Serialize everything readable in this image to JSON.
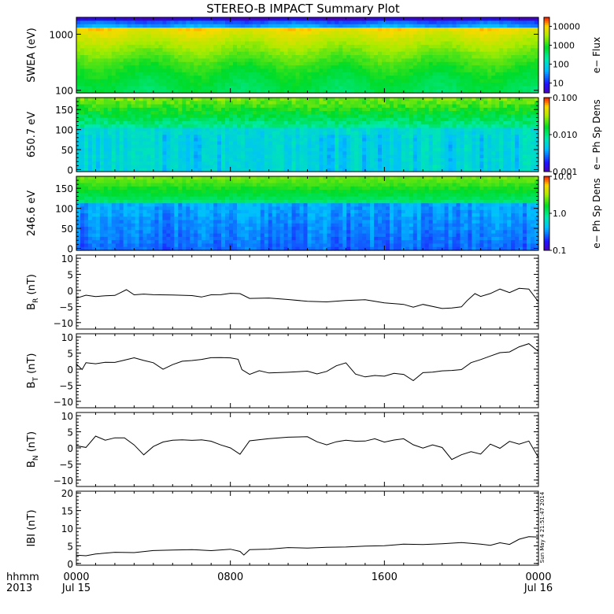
{
  "title": "STEREO-B IMPACT Summary Plot",
  "timestamp": "Sun May  4 21:51:47 2014",
  "time_axis": {
    "corner_label": "hhmm",
    "corner_year": "2013",
    "ticks": [
      {
        "hour": 0,
        "label": "0000",
        "date": "Jul 15"
      },
      {
        "hour": 8,
        "label": "0800",
        "date": ""
      },
      {
        "hour": 16,
        "label": "1600",
        "date": ""
      },
      {
        "hour": 24,
        "label": "0000",
        "date": "Jul 16"
      }
    ],
    "xlim": [
      0,
      24
    ]
  },
  "chart_data": [
    {
      "type": "heatmap",
      "ylabel": "SWEA (eV)",
      "yscale": "log",
      "ylim": [
        90,
        2000
      ],
      "yticks": [
        {
          "v": 100,
          "label": "100"
        },
        {
          "v": 1000,
          "label": "1000"
        }
      ],
      "colorbar": {
        "label": "e− Flux",
        "scale": "log",
        "range": [
          3,
          30000
        ],
        "ticks": [
          {
            "v": 10,
            "label": "10"
          },
          {
            "v": 100,
            "label": "100"
          },
          {
            "v": 1000,
            "label": "1000"
          },
          {
            "v": 10000,
            "label": "10000"
          }
        ]
      },
      "colors": {
        "low": "#2b00d4",
        "mid": "#00d060",
        "high": "#ffe000"
      }
    },
    {
      "type": "heatmap",
      "ylabel": "650.7 eV",
      "ylim": [
        -5,
        180
      ],
      "yticks": [
        {
          "v": 0,
          "label": "0"
        },
        {
          "v": 50,
          "label": "50"
        },
        {
          "v": 100,
          "label": "100"
        },
        {
          "v": 150,
          "label": "150"
        }
      ],
      "colorbar": {
        "label": "e− Ph Sp Dens",
        "scale": "log",
        "range": [
          0.001,
          0.1
        ],
        "ticks": [
          {
            "v": 0.001,
            "label": "0.001"
          },
          {
            "v": 0.01,
            "label": "0.010"
          },
          {
            "v": 0.1,
            "label": "0.100"
          }
        ]
      }
    },
    {
      "type": "heatmap",
      "ylabel": "246.6 eV",
      "ylim": [
        -5,
        180
      ],
      "yticks": [
        {
          "v": 0,
          "label": "0"
        },
        {
          "v": 50,
          "label": "50"
        },
        {
          "v": 100,
          "label": "100"
        },
        {
          "v": 150,
          "label": "150"
        }
      ],
      "colorbar": {
        "label": "e− Ph Sp Dens",
        "scale": "log",
        "range": [
          0.1,
          10
        ],
        "ticks": [
          {
            "v": 0.1,
            "label": "0.1"
          },
          {
            "v": 1,
            "label": "1.0"
          },
          {
            "v": 10,
            "label": "10.0"
          }
        ]
      }
    },
    {
      "type": "line",
      "ylabel": "B",
      "ylabel_sub": "R",
      "ylabel_unit": " (nT)",
      "ylim": [
        -12,
        11
      ],
      "yticks": [
        {
          "v": -10,
          "label": "−10"
        },
        {
          "v": -5,
          "label": "−5"
        },
        {
          "v": 0,
          "label": "0"
        },
        {
          "v": 5,
          "label": "5"
        },
        {
          "v": 10,
          "label": "10"
        }
      ],
      "x": [
        0,
        0.5,
        1,
        1.5,
        2,
        2.3,
        2.6,
        3,
        3.5,
        4,
        5,
        6,
        6.5,
        7,
        7.5,
        8,
        8.5,
        9,
        10,
        11,
        12,
        13,
        14,
        15,
        16,
        17,
        17.5,
        18,
        19,
        19.5,
        20,
        20.3,
        20.7,
        21,
        21.5,
        22,
        22.5,
        23,
        23.5,
        24
      ],
      "values": [
        -2.5,
        -1.5,
        -2,
        -1.5,
        -1.5,
        -0.5,
        0.3,
        -1.5,
        -1,
        -1.5,
        -1.5,
        -1.5,
        -2,
        -1.5,
        -1.5,
        -1,
        -1,
        -2.5,
        -2.5,
        -3,
        -3.5,
        -3.5,
        -3,
        -3,
        -4,
        -4.5,
        -5,
        -4.5,
        -5.5,
        -5.5,
        -5,
        -3,
        -1,
        -2,
        -1,
        0.5,
        -0.5,
        0.5,
        0.5,
        -3.5
      ]
    },
    {
      "type": "line",
      "ylabel": "B",
      "ylabel_sub": "T",
      "ylabel_unit": " (nT)",
      "ylim": [
        -12,
        11
      ],
      "yticks": [
        {
          "v": -10,
          "label": "−10"
        },
        {
          "v": -5,
          "label": "−5"
        },
        {
          "v": 0,
          "label": "0"
        },
        {
          "v": 5,
          "label": "5"
        },
        {
          "v": 10,
          "label": "10"
        }
      ],
      "x": [
        0,
        0.3,
        0.5,
        1,
        1.5,
        2,
        2.5,
        3,
        3.5,
        4,
        4.5,
        5,
        5.5,
        6,
        6.5,
        7,
        7.5,
        8,
        8.4,
        8.6,
        9,
        9.5,
        10,
        11,
        12,
        12.5,
        13,
        13.5,
        14,
        14.5,
        15,
        15.5,
        16,
        16.5,
        17,
        17.5,
        18,
        18.5,
        19,
        19.5,
        20,
        20.5,
        21,
        21.5,
        22,
        22.5,
        23,
        23.5,
        24
      ],
      "values": [
        1.5,
        0,
        2,
        1.5,
        2,
        2,
        3,
        3.5,
        2.5,
        2,
        0,
        1.5,
        2.5,
        2.5,
        3,
        3.5,
        3.5,
        3.5,
        3,
        0,
        -1.5,
        -0.5,
        -1,
        -1,
        -0.5,
        -1.5,
        -0.5,
        1,
        2,
        -1.5,
        -2.5,
        -2,
        -2,
        -1.5,
        -1.5,
        -3.5,
        -1,
        -1,
        -0.5,
        -0.5,
        0,
        2,
        3,
        4,
        5,
        5.5,
        7,
        8,
        5.5
      ]
    },
    {
      "type": "line",
      "ylabel": "B",
      "ylabel_sub": "N",
      "ylabel_unit": " (nT)",
      "ylim": [
        -12,
        11
      ],
      "yticks": [
        {
          "v": -10,
          "label": "−10"
        },
        {
          "v": -5,
          "label": "−5"
        },
        {
          "v": 0,
          "label": "0"
        },
        {
          "v": 5,
          "label": "5"
        },
        {
          "v": 10,
          "label": "10"
        }
      ],
      "x": [
        0,
        0.5,
        1,
        1.5,
        2,
        2.5,
        3,
        3.5,
        4,
        4.5,
        5,
        5.5,
        6,
        6.5,
        7,
        7.5,
        8,
        8.5,
        9,
        10,
        11,
        12,
        12.5,
        13,
        13.5,
        14,
        14.5,
        15,
        15.5,
        16,
        16.5,
        17,
        17.5,
        18,
        18.5,
        19,
        19.5,
        20,
        20.5,
        21,
        21.5,
        22,
        22.5,
        23,
        23.5,
        24
      ],
      "values": [
        0.5,
        0,
        3.5,
        2.5,
        3,
        3,
        1,
        -2,
        0.5,
        2,
        2.5,
        2.5,
        2.5,
        2.5,
        2,
        1,
        0,
        -2,
        2,
        3,
        3.5,
        3.5,
        2,
        1,
        2,
        2.5,
        2,
        2,
        3,
        2,
        2.5,
        3,
        1,
        0,
        1,
        0,
        -3.5,
        -2,
        -1,
        -2,
        1,
        0,
        2,
        1,
        2,
        -3
      ]
    },
    {
      "type": "line",
      "ylabel": "IBI",
      "ylabel_sub": "",
      "ylabel_unit": " (nT)",
      "ylim": [
        -0.5,
        20.5
      ],
      "yticks": [
        {
          "v": 0,
          "label": "0"
        },
        {
          "v": 5,
          "label": "5"
        },
        {
          "v": 10,
          "label": "10"
        },
        {
          "v": 15,
          "label": "15"
        },
        {
          "v": 20,
          "label": "20"
        }
      ],
      "x": [
        0,
        0.5,
        1,
        2,
        3,
        4,
        5,
        6,
        7,
        8,
        8.5,
        8.7,
        9,
        10,
        11,
        12,
        13,
        14,
        15,
        16,
        17,
        18,
        19,
        20,
        21,
        21.5,
        22,
        22.5,
        23,
        23.5,
        24
      ],
      "values": [
        2.5,
        2.3,
        2.5,
        3,
        3.2,
        3.5,
        3.7,
        3.8,
        3.7,
        4,
        3.5,
        2.5,
        4,
        4.2,
        4.5,
        4.5,
        4.5,
        4.8,
        5,
        5.2,
        5.5,
        5.5,
        5.5,
        5.8,
        5.5,
        5,
        6,
        5.5,
        7,
        7.5,
        7.5
      ]
    }
  ]
}
